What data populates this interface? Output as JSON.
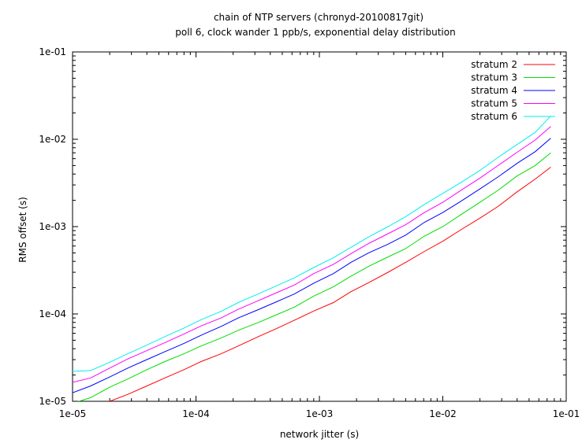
{
  "chart_data": {
    "type": "line",
    "title": "chain of NTP servers (chronyd-20100817git)",
    "subtitle": "poll 6, clock wander 1 ppb/s, exponential delay distribution",
    "xlabel": "network jitter (s)",
    "ylabel": "RMS offset (s)",
    "xscale": "log",
    "yscale": "log",
    "xlim": [
      1e-05,
      0.1
    ],
    "ylim": [
      1e-05,
      0.1
    ],
    "x_ticks": [
      "1e-05",
      "1e-04",
      "1e-03",
      "1e-02",
      "1e-01"
    ],
    "y_ticks": [
      "1e-05",
      "1e-04",
      "1e-03",
      "1e-02",
      "1e-01"
    ],
    "grid": false,
    "legend_position": "top-right",
    "x": [
      1e-05,
      1.4e-05,
      2e-05,
      2.8e-05,
      4e-05,
      5.6e-05,
      8e-05,
      0.00011,
      0.00016,
      0.00022,
      0.00032,
      0.00045,
      0.00063,
      0.0009,
      0.0013,
      0.0018,
      0.0025,
      0.0036,
      0.005,
      0.0071,
      0.01,
      0.014,
      0.02,
      0.028,
      0.04,
      0.056,
      0.075
    ],
    "series": [
      {
        "name": "stratum 2",
        "color": "#ff0000",
        "values": [
          7.5e-06,
          8.5e-06,
          1e-05,
          1.2e-05,
          1.5e-05,
          1.85e-05,
          2.3e-05,
          2.85e-05,
          3.5e-05,
          4.3e-05,
          5.5e-05,
          6.8e-05,
          8.5e-05,
          0.000108,
          0.000135,
          0.00018,
          0.000228,
          0.0003,
          0.00039,
          0.00052,
          0.00068,
          0.00092,
          0.00125,
          0.0017,
          0.0025,
          0.0035,
          0.0048
        ]
      },
      {
        "name": "stratum 3",
        "color": "#00dd00",
        "values": [
          9.5e-06,
          1.1e-05,
          1.45e-05,
          1.8e-05,
          2.3e-05,
          2.85e-05,
          3.5e-05,
          4.3e-05,
          5.3e-05,
          6.5e-05,
          8e-05,
          9.8e-05,
          0.00012,
          0.00016,
          0.000205,
          0.00027,
          0.00035,
          0.00045,
          0.00056,
          0.00078,
          0.001,
          0.00137,
          0.0019,
          0.0026,
          0.0038,
          0.005,
          0.007
        ]
      },
      {
        "name": "stratum 4",
        "color": "#0000ff",
        "values": [
          1.25e-05,
          1.5e-05,
          1.9e-05,
          2.4e-05,
          3e-05,
          3.7e-05,
          4.6e-05,
          5.7e-05,
          7.2e-05,
          9e-05,
          0.000112,
          0.000138,
          0.00017,
          0.000225,
          0.00029,
          0.00039,
          0.0005,
          0.00063,
          0.0008,
          0.00112,
          0.00145,
          0.00195,
          0.0027,
          0.0037,
          0.0053,
          0.0072,
          0.0103
        ]
      },
      {
        "name": "stratum 5",
        "color": "#ff00ff",
        "values": [
          1.65e-05,
          1.85e-05,
          2.4e-05,
          3.05e-05,
          3.8e-05,
          4.7e-05,
          5.9e-05,
          7.3e-05,
          9e-05,
          0.000113,
          0.000142,
          0.000175,
          0.000215,
          0.00029,
          0.00037,
          0.00049,
          0.00064,
          0.00083,
          0.00105,
          0.00145,
          0.0019,
          0.0026,
          0.0036,
          0.005,
          0.0071,
          0.0098,
          0.014
        ]
      },
      {
        "name": "stratum 6",
        "color": "#00eeee",
        "values": [
          2.2e-05,
          2.25e-05,
          2.8e-05,
          3.5e-05,
          4.4e-05,
          5.5e-05,
          6.9e-05,
          8.6e-05,
          0.000107,
          0.000135,
          0.00017,
          0.00021,
          0.00026,
          0.00034,
          0.00044,
          0.00058,
          0.00076,
          0.001,
          0.0013,
          0.0018,
          0.0024,
          0.0032,
          0.0044,
          0.0062,
          0.0087,
          0.012,
          0.0185
        ]
      }
    ]
  }
}
